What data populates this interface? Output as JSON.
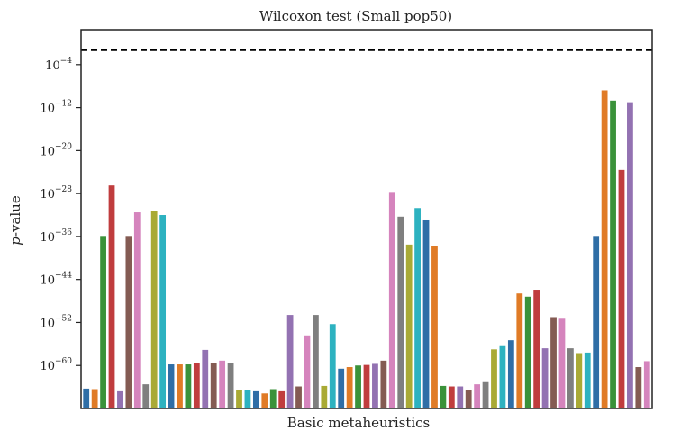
{
  "chart_data": {
    "type": "bar",
    "title": "Wilcoxon test (Small pop50)",
    "xlabel": "Basic metaheuristics",
    "ylabel_italic": "p",
    "ylabel_rest": "-value",
    "yscale": "log",
    "y_exponent_range": [
      -68,
      2.5
    ],
    "yticks": [
      {
        "base": "10",
        "exp": "−4",
        "value": -4
      },
      {
        "base": "10",
        "exp": "−12",
        "value": -12
      },
      {
        "base": "10",
        "exp": "−20",
        "value": -20
      },
      {
        "base": "10",
        "exp": "−28",
        "value": -28
      },
      {
        "base": "10",
        "exp": "−36",
        "value": -36
      },
      {
        "base": "10",
        "exp": "−44",
        "value": -44
      },
      {
        "base": "10",
        "exp": "−52",
        "value": -52
      },
      {
        "base": "10",
        "exp": "−60",
        "value": -60
      }
    ],
    "reference_line": {
      "log10_value": -1.3,
      "style": "dashed",
      "color": "#000000"
    },
    "palette": [
      "#2f6ea6",
      "#e07b26",
      "#3a923a",
      "#c03d3e",
      "#9372b2",
      "#845b53",
      "#d584bd",
      "#7f7f7f",
      "#a9aa35",
      "#2db2c0"
    ],
    "values_log10": [
      -64.3,
      -64.4,
      -35.9,
      -26.5,
      -64.8,
      -35.9,
      -31.5,
      -63.5,
      -31.2,
      -32.0,
      -59.8,
      -59.8,
      -59.8,
      -59.6,
      -57.1,
      -59.5,
      -59.1,
      -59.6,
      -64.5,
      -64.6,
      -64.8,
      -65.2,
      -64.4,
      -64.8,
      -50.6,
      -63.9,
      -54.4,
      -50.6,
      -63.8,
      -52.3,
      -60.6,
      -60.3,
      -60.0,
      -59.9,
      -59.7,
      -59.1,
      -27.7,
      -32.3,
      -37.5,
      -30.7,
      -33.0,
      -37.8,
      -63.8,
      -63.9,
      -63.9,
      -64.6,
      -63.5,
      -63.1,
      -57.0,
      -56.4,
      -55.3,
      -46.6,
      -47.2,
      -45.9,
      -56.8,
      -51.0,
      -51.3,
      -56.8,
      -57.7,
      -57.6,
      -35.9,
      -8.8,
      -10.7,
      -23.6,
      -11.0,
      -60.3,
      -59.2
    ]
  }
}
